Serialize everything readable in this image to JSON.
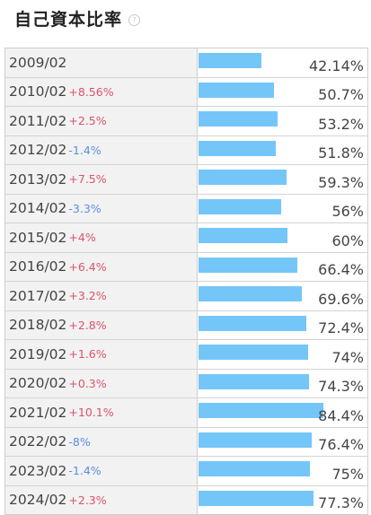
{
  "header": {
    "title": "自己資本比率",
    "help_glyph": "?"
  },
  "colors": {
    "bar": "#74c6f8",
    "up": "#d9546a",
    "down": "#5b8fe0",
    "label_bg": "#f2f2f2"
  },
  "chart_data": {
    "type": "bar",
    "orientation": "horizontal",
    "title": "自己資本比率",
    "xlim": [
      0,
      100
    ],
    "rows": [
      {
        "period": "2009/02",
        "change": "",
        "change_dir": "",
        "value": 42.14,
        "value_label": "42.14%"
      },
      {
        "period": "2010/02",
        "change": "+8.56%",
        "change_dir": "up",
        "value": 50.7,
        "value_label": "50.7%"
      },
      {
        "period": "2011/02",
        "change": "+2.5%",
        "change_dir": "up",
        "value": 53.2,
        "value_label": "53.2%"
      },
      {
        "period": "2012/02",
        "change": "-1.4%",
        "change_dir": "down",
        "value": 51.8,
        "value_label": "51.8%"
      },
      {
        "period": "2013/02",
        "change": "+7.5%",
        "change_dir": "up",
        "value": 59.3,
        "value_label": "59.3%"
      },
      {
        "period": "2014/02",
        "change": "-3.3%",
        "change_dir": "down",
        "value": 56,
        "value_label": "56%"
      },
      {
        "period": "2015/02",
        "change": "+4%",
        "change_dir": "up",
        "value": 60,
        "value_label": "60%"
      },
      {
        "period": "2016/02",
        "change": "+6.4%",
        "change_dir": "up",
        "value": 66.4,
        "value_label": "66.4%"
      },
      {
        "period": "2017/02",
        "change": "+3.2%",
        "change_dir": "up",
        "value": 69.6,
        "value_label": "69.6%"
      },
      {
        "period": "2018/02",
        "change": "+2.8%",
        "change_dir": "up",
        "value": 72.4,
        "value_label": "72.4%"
      },
      {
        "period": "2019/02",
        "change": "+1.6%",
        "change_dir": "up",
        "value": 74,
        "value_label": "74%"
      },
      {
        "period": "2020/02",
        "change": "+0.3%",
        "change_dir": "up",
        "value": 74.3,
        "value_label": "74.3%"
      },
      {
        "period": "2021/02",
        "change": "+10.1%",
        "change_dir": "up",
        "value": 84.4,
        "value_label": "84.4%"
      },
      {
        "period": "2022/02",
        "change": "-8%",
        "change_dir": "down",
        "value": 76.4,
        "value_label": "76.4%"
      },
      {
        "period": "2023/02",
        "change": "-1.4%",
        "change_dir": "down",
        "value": 75,
        "value_label": "75%"
      },
      {
        "period": "2024/02",
        "change": "+2.3%",
        "change_dir": "up",
        "value": 77.3,
        "value_label": "77.3%"
      }
    ]
  }
}
